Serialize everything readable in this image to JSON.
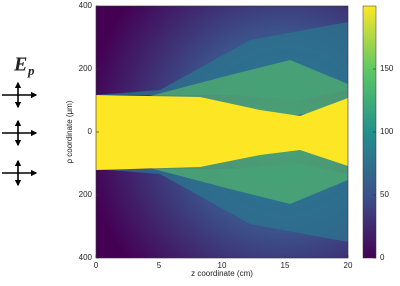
{
  "chart_data": {
    "type": "heatmap",
    "annotation": {
      "symbol": "E",
      "subscript": "p"
    },
    "xlabel": "z coordinate (cm)",
    "ylabel": "ρ coordinate (μm)",
    "xlim": [
      0,
      20
    ],
    "xticks": [
      0,
      5,
      10,
      15,
      20
    ],
    "ylim": [
      -400,
      400
    ],
    "yticks": [
      {
        "value": -400,
        "label": "400"
      },
      {
        "value": -200,
        "label": "200"
      },
      0,
      200,
      400
    ],
    "colorbar": {
      "lim": [
        0,
        200
      ],
      "ticks": [
        0,
        50,
        100,
        150
      ]
    }
  }
}
